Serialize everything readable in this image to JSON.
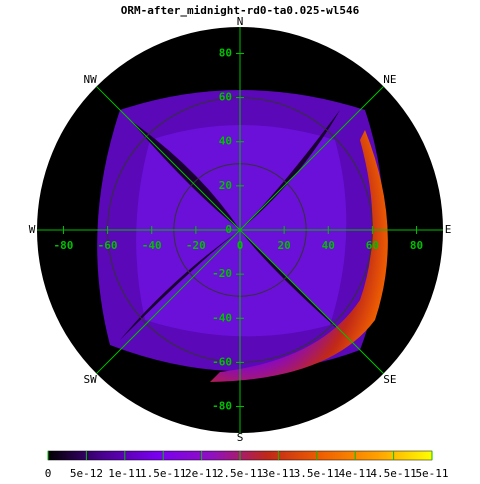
{
  "chart_data": {
    "type": "polar-heatmap",
    "title": "ORM-after_midnight-rd0-ta0.025-wl546",
    "compass": [
      "N",
      "NE",
      "E",
      "SE",
      "S",
      "SW",
      "W",
      "NW"
    ],
    "xlim": [
      -92,
      92
    ],
    "ylim": [
      -92,
      92
    ],
    "xticks": [
      -80,
      -60,
      -40,
      -20,
      0,
      20,
      40,
      60,
      80
    ],
    "yticks": [
      -80,
      -60,
      -40,
      -20,
      0,
      20,
      40,
      60,
      80
    ],
    "grid_circles": [
      30,
      60
    ],
    "grid_color": "#00c000",
    "clim": [
      0,
      5e-11
    ],
    "cticks": [
      0,
      5e-12,
      1e-11,
      1.5e-11,
      2e-11,
      2.5e-11,
      3e-11,
      3.5e-11,
      4e-11,
      4.5e-11,
      5e-11
    ],
    "colormap": [
      "#000000",
      "#4a0090",
      "#7a00f0",
      "#9010c0",
      "#c02818",
      "#f06000",
      "#ffa000",
      "#ffff00"
    ]
  }
}
